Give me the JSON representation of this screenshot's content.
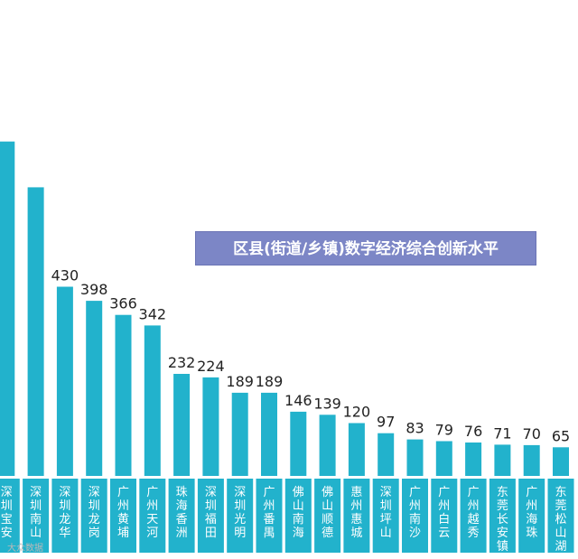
{
  "chart_data": {
    "type": "bar",
    "title": "区县(街道/乡镇)数字经济综合创新水平",
    "categories": [
      "深圳宝安",
      "深圳南山",
      "深圳龙华",
      "深圳龙岗",
      "广州黄埔",
      "广州天河",
      "珠海香洲",
      "深圳福田",
      "深圳光明",
      "广州番禺",
      "佛山南海",
      "佛山顺德",
      "惠州惠城",
      "深圳坪山",
      "广州南沙",
      "广州白云",
      "广州越秀",
      "东莞长安镇",
      "广州海珠",
      "东莞松山湖"
    ],
    "values": [
      null,
      null,
      430,
      398,
      366,
      342,
      232,
      224,
      189,
      189,
      146,
      139,
      120,
      97,
      83,
      79,
      76,
      71,
      70,
      65
    ],
    "labels": [
      "",
      "",
      "430",
      "398",
      "366",
      "342",
      "232",
      "224",
      "189",
      "189",
      "146",
      "139",
      "120",
      "97",
      "83",
      "79",
      "76",
      "71",
      "70",
      "65"
    ],
    "estimated_values": {
      "深圳宝安": 760,
      "深圳南山": 656
    },
    "xlabel": "",
    "ylabel": "",
    "ylim": [
      0,
      760
    ],
    "grid": false,
    "legend": "none"
  },
  "watermark": "大众数据",
  "colors": {
    "bar": "#22b2cc",
    "title_bg": "#7c86c6",
    "label": "#222222"
  }
}
